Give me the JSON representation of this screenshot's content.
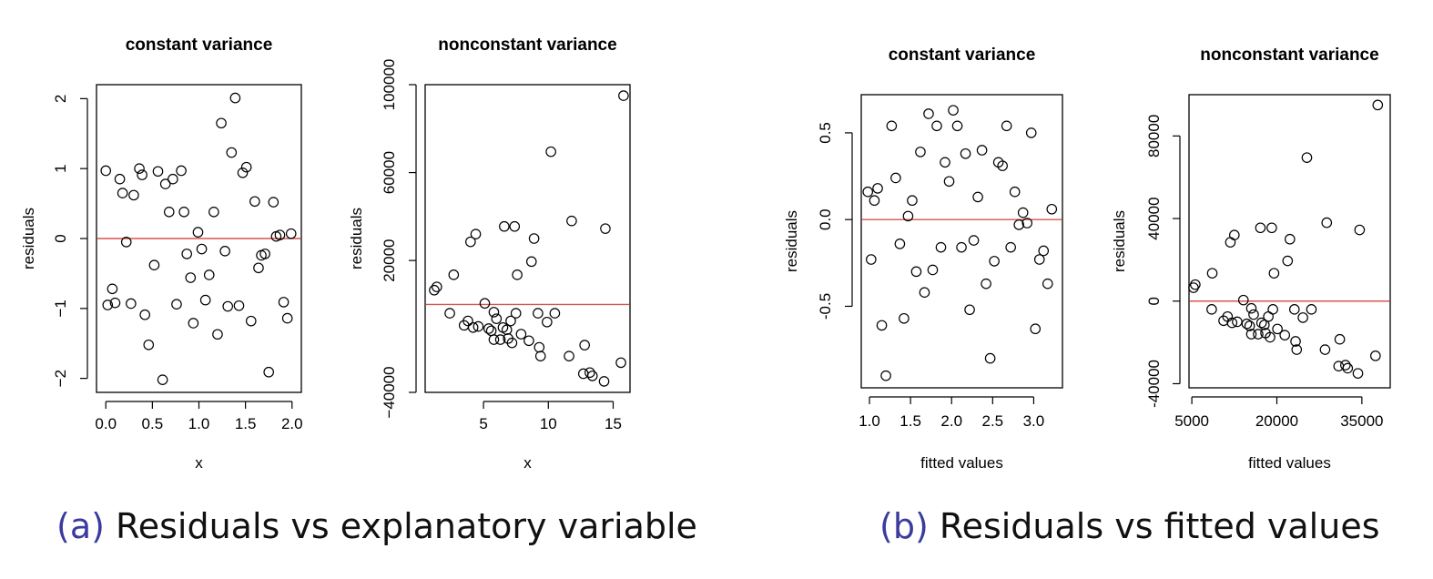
{
  "captions": [
    {
      "tag": "(a)",
      "text": "Residuals vs explanatory variable"
    },
    {
      "tag": "(b)",
      "text": "Residuals vs fitted values"
    }
  ],
  "colors": {
    "points": "#000000",
    "reference_line": "#d9534f",
    "caption_tag": "#3b3b9e",
    "frame": "#000000"
  },
  "chart_data": [
    {
      "type": "scatter",
      "title": "constant variance",
      "xlabel": "x",
      "ylabel": "residuals",
      "xlim": [
        -0.1,
        2.1
      ],
      "ylim": [
        -2.2,
        2.2
      ],
      "xticks": [
        0.0,
        0.5,
        1.0,
        1.5,
        2.0
      ],
      "xticklabels": [
        "0.0",
        "0.5",
        "1.0",
        "1.5",
        "2.0"
      ],
      "yticks": [
        -2,
        -1,
        0,
        1,
        2
      ],
      "yticklabels": [
        "−2",
        "−1",
        "0",
        "1",
        "2"
      ],
      "reference_line": 0,
      "grid": false,
      "points": [
        [
          0.0,
          0.97
        ],
        [
          0.02,
          -0.95
        ],
        [
          0.07,
          -0.72
        ],
        [
          0.1,
          -0.92
        ],
        [
          0.15,
          0.85
        ],
        [
          0.18,
          0.65
        ],
        [
          0.22,
          -0.05
        ],
        [
          0.27,
          -0.93
        ],
        [
          0.3,
          0.62
        ],
        [
          0.36,
          1.0
        ],
        [
          0.39,
          0.91
        ],
        [
          0.42,
          -1.09
        ],
        [
          0.46,
          -1.52
        ],
        [
          0.52,
          -0.38
        ],
        [
          0.56,
          0.96
        ],
        [
          0.61,
          -2.02
        ],
        [
          0.64,
          0.78
        ],
        [
          0.68,
          0.38
        ],
        [
          0.72,
          0.85
        ],
        [
          0.76,
          -0.94
        ],
        [
          0.81,
          0.97
        ],
        [
          0.84,
          0.38
        ],
        [
          0.87,
          -0.22
        ],
        [
          0.91,
          -0.56
        ],
        [
          0.94,
          -1.21
        ],
        [
          0.99,
          0.09
        ],
        [
          1.03,
          -0.15
        ],
        [
          1.07,
          -0.88
        ],
        [
          1.11,
          -0.52
        ],
        [
          1.16,
          0.38
        ],
        [
          1.2,
          -1.37
        ],
        [
          1.24,
          1.65
        ],
        [
          1.28,
          -0.18
        ],
        [
          1.31,
          -0.97
        ],
        [
          1.35,
          1.23
        ],
        [
          1.39,
          2.01
        ],
        [
          1.43,
          -0.96
        ],
        [
          1.47,
          0.94
        ],
        [
          1.51,
          1.02
        ],
        [
          1.56,
          -1.18
        ],
        [
          1.6,
          0.53
        ],
        [
          1.64,
          -0.42
        ],
        [
          1.67,
          -0.24
        ],
        [
          1.71,
          -0.22
        ],
        [
          1.75,
          -1.91
        ],
        [
          1.8,
          0.52
        ],
        [
          1.83,
          0.03
        ],
        [
          1.87,
          0.05
        ],
        [
          1.91,
          -0.91
        ],
        [
          1.95,
          -1.14
        ],
        [
          1.99,
          0.07
        ]
      ]
    },
    {
      "type": "scatter",
      "title": "nonconstant variance",
      "xlabel": "x",
      "ylabel": "residuals",
      "xlim": [
        0.5,
        16.3
      ],
      "ylim": [
        -40000,
        100000
      ],
      "xticks": [
        5,
        10,
        15
      ],
      "xticklabels": [
        "5",
        "10",
        "15"
      ],
      "yticks": [
        -40000,
        20000,
        60000,
        100000
      ],
      "yticklabels": [
        "−40000",
        "20000",
        "60000",
        "100000"
      ],
      "reference_line": 0,
      "grid": false,
      "points": [
        [
          1.2,
          6500
        ],
        [
          1.4,
          8000
        ],
        [
          2.7,
          13500
        ],
        [
          2.4,
          -4000
        ],
        [
          3.5,
          -9500
        ],
        [
          3.8,
          -7500
        ],
        [
          4.0,
          28500
        ],
        [
          4.2,
          -10500
        ],
        [
          4.4,
          32000
        ],
        [
          4.6,
          -10000
        ],
        [
          5.1,
          500
        ],
        [
          5.4,
          -11000
        ],
        [
          5.6,
          -12000
        ],
        [
          5.8,
          -3500
        ],
        [
          5.8,
          -16000
        ],
        [
          6.0,
          -6500
        ],
        [
          6.3,
          -16000
        ],
        [
          6.6,
          35500
        ],
        [
          6.5,
          -10500
        ],
        [
          6.8,
          -11500
        ],
        [
          6.9,
          -15500
        ],
        [
          7.1,
          -7500
        ],
        [
          7.2,
          -17500
        ],
        [
          7.4,
          35500
        ],
        [
          7.5,
          -4000
        ],
        [
          7.6,
          13500
        ],
        [
          7.9,
          -13500
        ],
        [
          8.5,
          -16500
        ],
        [
          8.7,
          19500
        ],
        [
          8.9,
          30000
        ],
        [
          9.2,
          -4000
        ],
        [
          9.3,
          -19500
        ],
        [
          9.4,
          -23500
        ],
        [
          9.9,
          -8000
        ],
        [
          10.2,
          69500
        ],
        [
          10.5,
          -4000
        ],
        [
          11.6,
          -23500
        ],
        [
          11.8,
          38000
        ],
        [
          12.7,
          -31500
        ],
        [
          12.8,
          -18500
        ],
        [
          13.2,
          -31000
        ],
        [
          13.4,
          -32500
        ],
        [
          14.3,
          -35000
        ],
        [
          14.4,
          34500
        ],
        [
          15.6,
          -26500
        ],
        [
          15.8,
          95000
        ]
      ]
    },
    {
      "type": "scatter",
      "title": "constant variance",
      "xlabel": "fitted values",
      "ylabel": "residuals",
      "xlim": [
        0.9,
        3.35
      ],
      "ylim": [
        -0.97,
        0.72
      ],
      "xticks": [
        1.0,
        1.5,
        2.0,
        2.5,
        3.0
      ],
      "xticklabels": [
        "1.0",
        "1.5",
        "2.0",
        "2.5",
        "3.0"
      ],
      "yticks": [
        -0.5,
        0.0,
        0.5
      ],
      "yticklabels": [
        "-0.5",
        "0.0",
        "0.5"
      ],
      "reference_line": 0,
      "grid": false,
      "points": [
        [
          0.98,
          0.16
        ],
        [
          1.02,
          -0.23
        ],
        [
          1.06,
          0.11
        ],
        [
          1.1,
          0.18
        ],
        [
          1.15,
          -0.61
        ],
        [
          1.2,
          -0.9
        ],
        [
          1.27,
          0.54
        ],
        [
          1.32,
          0.24
        ],
        [
          1.37,
          -0.14
        ],
        [
          1.42,
          -0.57
        ],
        [
          1.47,
          0.02
        ],
        [
          1.52,
          0.11
        ],
        [
          1.57,
          -0.3
        ],
        [
          1.62,
          0.39
        ],
        [
          1.67,
          -0.42
        ],
        [
          1.72,
          0.61
        ],
        [
          1.77,
          -0.29
        ],
        [
          1.82,
          0.54
        ],
        [
          1.87,
          -0.16
        ],
        [
          1.92,
          0.33
        ],
        [
          1.97,
          0.22
        ],
        [
          2.02,
          0.63
        ],
        [
          2.07,
          0.54
        ],
        [
          2.12,
          -0.16
        ],
        [
          2.17,
          0.38
        ],
        [
          2.22,
          -0.52
        ],
        [
          2.27,
          -0.12
        ],
        [
          2.32,
          0.13
        ],
        [
          2.37,
          0.4
        ],
        [
          2.42,
          -0.37
        ],
        [
          2.47,
          -0.8
        ],
        [
          2.52,
          -0.24
        ],
        [
          2.57,
          0.33
        ],
        [
          2.62,
          0.31
        ],
        [
          2.67,
          0.54
        ],
        [
          2.72,
          -0.16
        ],
        [
          2.77,
          0.16
        ],
        [
          2.82,
          -0.03
        ],
        [
          2.87,
          0.04
        ],
        [
          2.92,
          -0.02
        ],
        [
          2.97,
          0.5
        ],
        [
          3.02,
          -0.63
        ],
        [
          3.07,
          -0.23
        ],
        [
          3.12,
          -0.18
        ],
        [
          3.17,
          -0.37
        ],
        [
          3.22,
          0.06
        ]
      ]
    },
    {
      "type": "scatter",
      "title": "nonconstant variance",
      "xlabel": "fitted values",
      "ylabel": "residuals",
      "xlim": [
        4500,
        40000
      ],
      "ylim": [
        -42000,
        100000
      ],
      "xticks": [
        5000,
        20000,
        35000
      ],
      "xticklabels": [
        "5000",
        "20000",
        "35000"
      ],
      "yticks": [
        -40000,
        0,
        40000,
        80000
      ],
      "yticklabels": [
        "-40000",
        "0",
        "40000",
        "80000"
      ],
      "reference_line": 0,
      "grid": false,
      "points": [
        [
          5300,
          6500
        ],
        [
          5600,
          8000
        ],
        [
          8600,
          13500
        ],
        [
          8500,
          -4000
        ],
        [
          10600,
          -9500
        ],
        [
          11300,
          -7500
        ],
        [
          11800,
          28500
        ],
        [
          12100,
          -10500
        ],
        [
          12500,
          32000
        ],
        [
          13000,
          -10000
        ],
        [
          14100,
          500
        ],
        [
          14700,
          -11000
        ],
        [
          15200,
          -12000
        ],
        [
          15500,
          -3500
        ],
        [
          15500,
          -16000
        ],
        [
          15900,
          -6500
        ],
        [
          16700,
          -16000
        ],
        [
          17100,
          35500
        ],
        [
          17300,
          -10500
        ],
        [
          17800,
          -11500
        ],
        [
          18000,
          -15500
        ],
        [
          18500,
          -7500
        ],
        [
          18800,
          -17500
        ],
        [
          19100,
          35500
        ],
        [
          19300,
          -4000
        ],
        [
          19500,
          13500
        ],
        [
          20100,
          -13500
        ],
        [
          21400,
          -16500
        ],
        [
          21900,
          19500
        ],
        [
          22300,
          30000
        ],
        [
          23100,
          -4000
        ],
        [
          23300,
          -19500
        ],
        [
          23500,
          -23500
        ],
        [
          24600,
          -8000
        ],
        [
          25300,
          69500
        ],
        [
          26100,
          -4000
        ],
        [
          28500,
          -23500
        ],
        [
          28800,
          38000
        ],
        [
          30900,
          -31500
        ],
        [
          31100,
          -18500
        ],
        [
          32100,
          -31000
        ],
        [
          32500,
          -32500
        ],
        [
          34300,
          -35000
        ],
        [
          34600,
          34500
        ],
        [
          37400,
          -26500
        ],
        [
          37800,
          95000
        ]
      ]
    }
  ]
}
